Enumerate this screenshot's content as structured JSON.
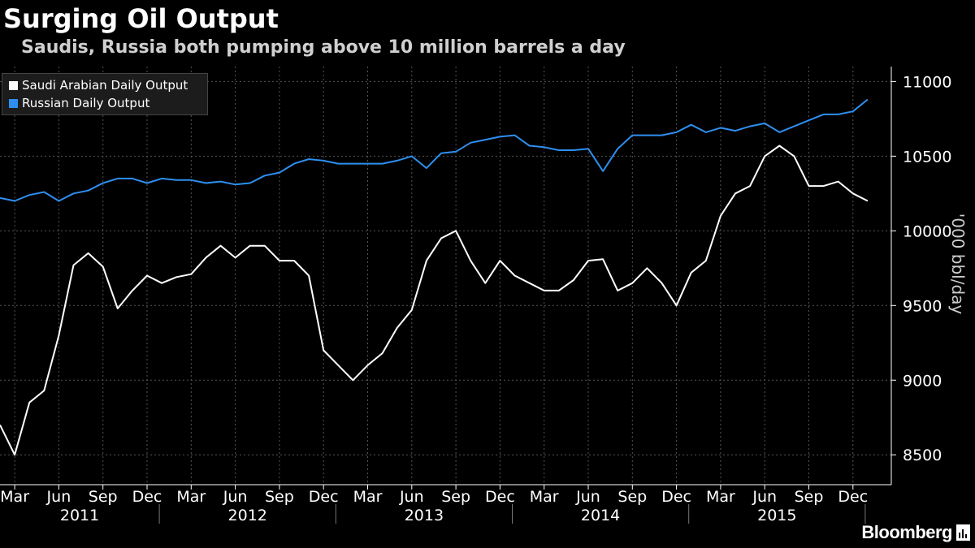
{
  "header": {
    "title": "Surging Oil Output",
    "subtitle": "Saudis, Russia both pumping above 10 million barrels a day"
  },
  "branding": {
    "logo_text": "Bloomberg"
  },
  "colors": {
    "saudi": "#ffffff",
    "russia": "#2e8ff0",
    "background": "#000000",
    "grid": "#555555"
  },
  "chart_data": {
    "type": "line",
    "ylabel": "'000 bbl/day",
    "ylim": [
      8300,
      11100
    ],
    "y_ticks": [
      "8500",
      "9000",
      "9500",
      "10000",
      "10500",
      "11000"
    ],
    "legend_position": "top-left",
    "grid": true,
    "y_axis_side": "right",
    "x_tick_labels": [
      "Mar",
      "Jun",
      "Sep",
      "Dec",
      "Mar",
      "Jun",
      "Sep",
      "Dec",
      "Mar",
      "Jun",
      "Sep",
      "Dec",
      "Mar",
      "Jun",
      "Sep",
      "Dec",
      "Mar",
      "Jun",
      "Sep",
      "Dec"
    ],
    "year_labels": [
      "2011",
      "2012",
      "2013",
      "2014",
      "2015"
    ],
    "x": [
      "2011-02",
      "2011-03",
      "2011-04",
      "2011-05",
      "2011-06",
      "2011-07",
      "2011-08",
      "2011-09",
      "2011-10",
      "2011-11",
      "2011-12",
      "2012-01",
      "2012-02",
      "2012-03",
      "2012-04",
      "2012-05",
      "2012-06",
      "2012-07",
      "2012-08",
      "2012-09",
      "2012-10",
      "2012-11",
      "2012-12",
      "2013-01",
      "2013-02",
      "2013-03",
      "2013-04",
      "2013-05",
      "2013-06",
      "2013-07",
      "2013-08",
      "2013-09",
      "2013-10",
      "2013-11",
      "2013-12",
      "2014-01",
      "2014-02",
      "2014-03",
      "2014-04",
      "2014-05",
      "2014-06",
      "2014-07",
      "2014-08",
      "2014-09",
      "2014-10",
      "2014-11",
      "2014-12",
      "2015-01",
      "2015-02",
      "2015-03",
      "2015-04",
      "2015-05",
      "2015-06",
      "2015-07",
      "2015-08",
      "2015-09",
      "2015-10",
      "2015-11",
      "2015-12",
      "2016-01"
    ],
    "series": [
      {
        "name": "Saudi Arabian Daily Output",
        "values": [
          8700,
          8500,
          8850,
          8930,
          9300,
          9770,
          9850,
          9760,
          9480,
          9600,
          9700,
          9650,
          9690,
          9710,
          9820,
          9900,
          9820,
          9900,
          9900,
          9800,
          9800,
          9700,
          9200,
          9100,
          9000,
          9100,
          9180,
          9350,
          9470,
          9800,
          9950,
          10000,
          9800,
          9650,
          9800,
          9700,
          9650,
          9600,
          9600,
          9670,
          9800,
          9810,
          9600,
          9650,
          9750,
          9650,
          9500,
          9720,
          9800,
          10100,
          10250,
          10300,
          10500,
          10570,
          10500,
          10300,
          10300,
          10330,
          10250,
          10200
        ]
      },
      {
        "name": "Russian Daily Output",
        "values": [
          10220,
          10200,
          10240,
          10260,
          10200,
          10250,
          10270,
          10320,
          10350,
          10350,
          10320,
          10350,
          10340,
          10340,
          10320,
          10330,
          10310,
          10320,
          10370,
          10390,
          10450,
          10480,
          10470,
          10450,
          10450,
          10450,
          10450,
          10470,
          10500,
          10420,
          10520,
          10530,
          10590,
          10610,
          10630,
          10640,
          10570,
          10560,
          10540,
          10540,
          10550,
          10400,
          10550,
          10640,
          10640,
          10640,
          10660,
          10710,
          10660,
          10690,
          10670,
          10700,
          10720,
          10660,
          10700,
          10740,
          10780,
          10780,
          10800,
          10880
        ]
      }
    ]
  }
}
